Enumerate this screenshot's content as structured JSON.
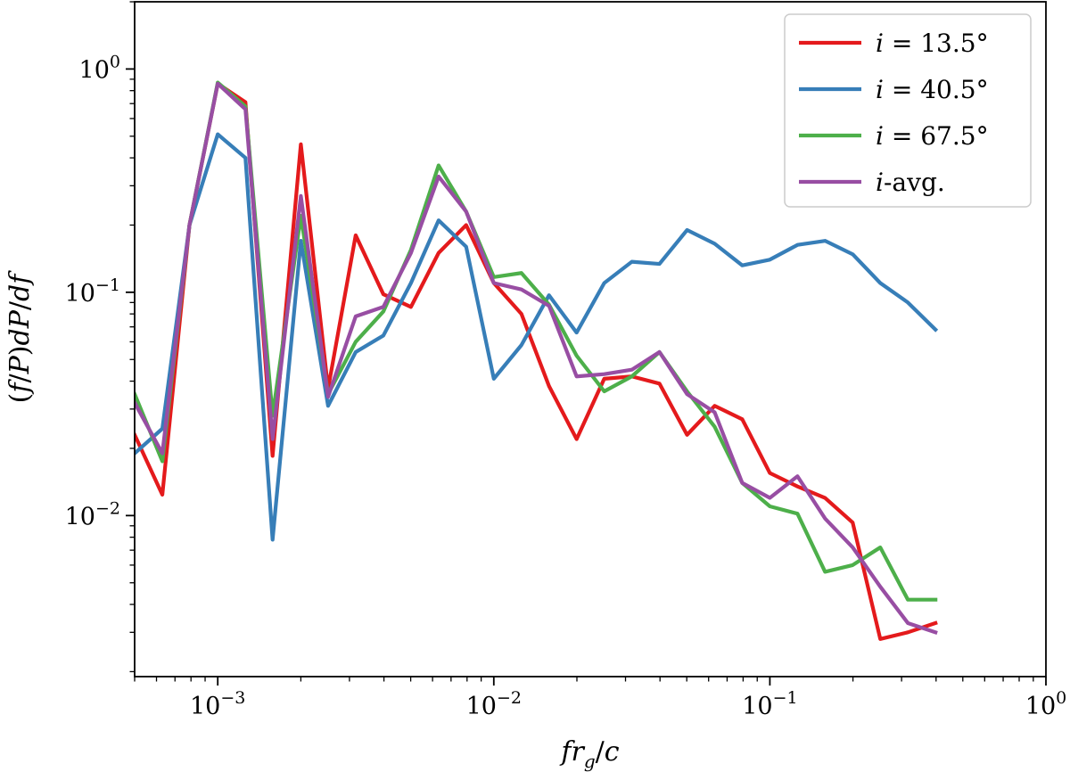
{
  "chart_data": {
    "type": "line",
    "xlabel": "fr_g/c",
    "ylabel": "(f/P)dP/df",
    "xscale": "log",
    "yscale": "log",
    "xlim": [
      0.0005,
      1
    ],
    "ylim": [
      0.0019,
      2.0
    ],
    "grid": false,
    "legend": "top-right",
    "x_ticks": [
      {
        "value": 0.001,
        "base": "10",
        "exp": "−3"
      },
      {
        "value": 0.01,
        "base": "10",
        "exp": "−2"
      },
      {
        "value": 0.1,
        "base": "10",
        "exp": "−1"
      },
      {
        "value": 1,
        "base": "10",
        "exp": "0"
      }
    ],
    "y_ticks": [
      {
        "value": 0.01,
        "base": "10",
        "exp": "−2"
      },
      {
        "value": 0.1,
        "base": "10",
        "exp": "−1"
      },
      {
        "value": 1,
        "base": "10",
        "exp": "0"
      }
    ],
    "x": [
      0.0005,
      0.00063,
      0.00079,
      0.001,
      0.00126,
      0.00158,
      0.002,
      0.00251,
      0.00316,
      0.00398,
      0.00501,
      0.00631,
      0.00794,
      0.01,
      0.01259,
      0.01585,
      0.01995,
      0.02512,
      0.03162,
      0.03981,
      0.05012,
      0.0631,
      0.07943,
      0.1,
      0.12589,
      0.15849,
      0.19953,
      0.25119,
      0.31623,
      0.39811
    ],
    "series": [
      {
        "name": "i = 13.5°",
        "legend_var": "i",
        "legend_rest": " = 13.5°",
        "color": "#e41a1c",
        "values": [
          0.023,
          0.0124,
          0.2,
          0.86,
          0.71,
          0.0185,
          0.46,
          0.037,
          0.18,
          0.098,
          0.086,
          0.15,
          0.2,
          0.11,
          0.08,
          0.038,
          0.022,
          0.041,
          0.042,
          0.039,
          0.023,
          0.031,
          0.027,
          0.0155,
          0.0135,
          0.012,
          0.0093,
          0.0028,
          0.003,
          0.0033
        ]
      },
      {
        "name": "i = 40.5°",
        "legend_var": "i",
        "legend_rest": " = 40.5°",
        "color": "#377eb8",
        "values": [
          0.019,
          0.0245,
          0.2,
          0.51,
          0.4,
          0.0078,
          0.17,
          0.031,
          0.054,
          0.064,
          0.11,
          0.21,
          0.16,
          0.041,
          0.058,
          0.097,
          0.066,
          0.11,
          0.137,
          0.134,
          0.19,
          0.165,
          0.132,
          0.14,
          0.163,
          0.17,
          0.148,
          0.11,
          0.09,
          0.068
        ]
      },
      {
        "name": "i = 67.5°",
        "legend_var": "i",
        "legend_rest": " = 67.5°",
        "color": "#4daf4a",
        "values": [
          0.035,
          0.0175,
          0.2,
          0.87,
          0.68,
          0.028,
          0.22,
          0.035,
          0.06,
          0.082,
          0.155,
          0.37,
          0.23,
          0.117,
          0.122,
          0.088,
          0.052,
          0.036,
          0.042,
          0.054,
          0.036,
          0.025,
          0.014,
          0.011,
          0.0102,
          0.0056,
          0.006,
          0.0072,
          0.0042,
          0.0042
        ]
      },
      {
        "name": "i-avg.",
        "legend_var": "i",
        "legend_rest": "-avg.",
        "color": "#984ea3",
        "values": [
          0.032,
          0.019,
          0.2,
          0.86,
          0.66,
          0.022,
          0.27,
          0.034,
          0.078,
          0.086,
          0.15,
          0.33,
          0.23,
          0.11,
          0.103,
          0.087,
          0.042,
          0.043,
          0.045,
          0.054,
          0.035,
          0.029,
          0.014,
          0.012,
          0.015,
          0.0097,
          0.0072,
          0.0048,
          0.0033,
          0.003
        ]
      }
    ]
  }
}
